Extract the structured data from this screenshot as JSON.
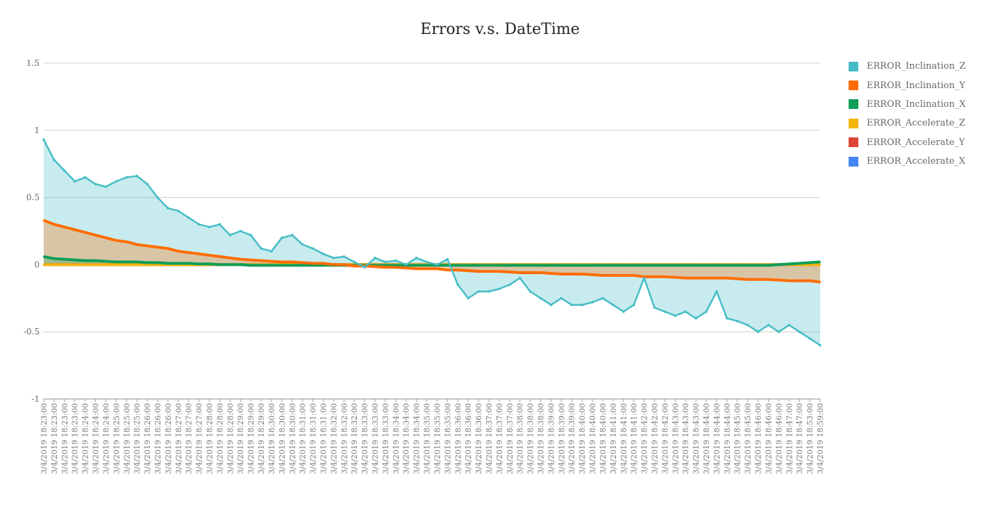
{
  "chart_data": {
    "type": "area",
    "title": "Errors v.s. DateTime",
    "xlabel": "",
    "ylabel": "",
    "ylim": [
      -1,
      1.5
    ],
    "yticks": [
      "1.5",
      "1",
      "0.5",
      "0",
      "-0.5",
      "-1"
    ],
    "grid": true,
    "legend_position": "right",
    "categories": [
      "3/4/2019 18:23:00",
      "3/4/2019 18:23:00",
      "3/4/2019 18:23:00",
      "3/4/2019 18:23:00",
      "3/4/2019 18:24:00",
      "3/4/2019 18:24:00",
      "3/4/2019 18:24:00",
      "3/4/2019 18:25:00",
      "3/4/2019 18:25:00",
      "3/4/2019 18:25:00",
      "3/4/2019 18:26:00",
      "3/4/2019 18:26:00",
      "3/4/2019 18:26:00",
      "3/4/2019 18:27:00",
      "3/4/2019 18:27:00",
      "3/4/2019 18:27:00",
      "3/4/2019 18:28:00",
      "3/4/2019 18:28:00",
      "3/4/2019 18:28:00",
      "3/4/2019 18:29:00",
      "3/4/2019 18:29:00",
      "3/4/2019 18:29:00",
      "3/4/2019 18:30:00",
      "3/4/2019 18:30:00",
      "3/4/2019 18:30:00",
      "3/4/2019 18:31:00",
      "3/4/2019 18:31:00",
      "3/4/2019 18:31:00",
      "3/4/2019 18:32:00",
      "3/4/2019 18:32:00",
      "3/4/2019 18:32:00",
      "3/4/2019 18:33:00",
      "3/4/2019 18:33:00",
      "3/4/2019 18:33:00",
      "3/4/2019 18:34:00",
      "3/4/2019 18:34:00",
      "3/4/2019 18:34:00",
      "3/4/2019 18:35:00",
      "3/4/2019 18:35:00",
      "3/4/2019 18:35:00",
      "3/4/2019 18:36:00",
      "3/4/2019 18:36:00",
      "3/4/2019 18:36:00",
      "3/4/2019 18:37:00",
      "3/4/2019 18:37:00",
      "3/4/2019 18:37:00",
      "3/4/2019 18:38:00",
      "3/4/2019 18:38:00",
      "3/4/2019 18:38:00",
      "3/4/2019 18:39:00",
      "3/4/2019 18:39:00",
      "3/4/2019 18:39:00",
      "3/4/2019 18:40:00",
      "3/4/2019 18:40:00",
      "3/4/2019 18:40:00",
      "3/4/2019 18:41:00",
      "3/4/2019 18:41:00",
      "3/4/2019 18:41:00",
      "3/4/2019 18:42:00",
      "3/4/2019 18:42:00",
      "3/4/2019 18:42:00",
      "3/4/2019 18:43:00",
      "3/4/2019 18:43:00",
      "3/4/2019 18:43:00",
      "3/4/2019 18:44:00",
      "3/4/2019 18:44:00",
      "3/4/2019 18:44:00",
      "3/4/2019 18:45:00",
      "3/4/2019 18:45:00",
      "3/4/2019 18:46:00",
      "3/4/2019 18:46:00",
      "3/4/2019 18:46:00",
      "3/4/2019 18:47:00",
      "3/4/2019 18:47:00",
      "3/4/2019 18:53:00",
      "3/4/2019 18:59:00"
    ],
    "series": [
      {
        "name": "ERROR_Inclination_Z",
        "color": "#46BDC6",
        "values": [
          0.93,
          0.78,
          0.7,
          0.62,
          0.65,
          0.6,
          0.58,
          0.62,
          0.65,
          0.66,
          0.6,
          0.5,
          0.42,
          0.4,
          0.35,
          0.3,
          0.28,
          0.3,
          0.22,
          0.25,
          0.22,
          0.12,
          0.1,
          0.2,
          0.22,
          0.15,
          0.12,
          0.08,
          0.05,
          0.06,
          0.02,
          -0.02,
          0.05,
          0.02,
          0.03,
          0.0,
          0.05,
          0.02,
          0.0,
          0.04,
          -0.15,
          -0.25,
          -0.2,
          -0.2,
          -0.18,
          -0.15,
          -0.1,
          -0.2,
          -0.25,
          -0.3,
          -0.25,
          -0.3,
          -0.3,
          -0.28,
          -0.25,
          -0.3,
          -0.35,
          -0.3,
          -0.1,
          -0.32,
          -0.35,
          -0.38,
          -0.35,
          -0.4,
          -0.35,
          -0.2,
          -0.4,
          -0.42,
          -0.45,
          -0.5,
          -0.45,
          -0.5,
          -0.45,
          -0.5,
          -0.55,
          -0.6
        ]
      },
      {
        "name": "ERROR_Inclination_Y",
        "color": "#FF6D01",
        "values": [
          0.33,
          0.3,
          0.28,
          0.26,
          0.24,
          0.22,
          0.2,
          0.18,
          0.17,
          0.15,
          0.14,
          0.13,
          0.12,
          0.1,
          0.09,
          0.08,
          0.07,
          0.06,
          0.05,
          0.04,
          0.035,
          0.03,
          0.025,
          0.02,
          0.02,
          0.015,
          0.01,
          0.01,
          0.0,
          0.0,
          -0.01,
          -0.01,
          -0.015,
          -0.02,
          -0.02,
          -0.025,
          -0.03,
          -0.03,
          -0.03,
          -0.04,
          -0.04,
          -0.045,
          -0.05,
          -0.05,
          -0.05,
          -0.055,
          -0.06,
          -0.06,
          -0.06,
          -0.065,
          -0.07,
          -0.07,
          -0.07,
          -0.075,
          -0.08,
          -0.08,
          -0.08,
          -0.08,
          -0.09,
          -0.09,
          -0.09,
          -0.095,
          -0.1,
          -0.1,
          -0.1,
          -0.1,
          -0.1,
          -0.105,
          -0.11,
          -0.11,
          -0.11,
          -0.115,
          -0.12,
          -0.12,
          -0.12,
          -0.13
        ]
      },
      {
        "name": "ERROR_Inclination_X",
        "color": "#0F9D58",
        "values": [
          0.06,
          0.045,
          0.04,
          0.035,
          0.03,
          0.03,
          0.025,
          0.02,
          0.02,
          0.02,
          0.015,
          0.015,
          0.01,
          0.01,
          0.01,
          0.005,
          0.005,
          0.0,
          0.0,
          0.0,
          -0.005,
          -0.005,
          -0.005,
          -0.005,
          -0.005,
          -0.005,
          -0.005,
          -0.005,
          -0.005,
          -0.005,
          -0.005,
          -0.005,
          -0.005,
          -0.005,
          -0.005,
          -0.005,
          -0.005,
          -0.005,
          -0.005,
          -0.005,
          -0.005,
          -0.005,
          -0.005,
          -0.005,
          -0.005,
          -0.005,
          -0.005,
          -0.005,
          -0.005,
          -0.005,
          -0.005,
          -0.005,
          -0.005,
          -0.005,
          -0.005,
          -0.005,
          -0.005,
          -0.005,
          -0.005,
          -0.005,
          -0.005,
          -0.005,
          -0.005,
          -0.005,
          -0.005,
          -0.005,
          -0.005,
          -0.005,
          -0.005,
          -0.005,
          -0.005,
          0.0,
          0.005,
          0.01,
          0.015,
          0.02
        ]
      },
      {
        "name": "ERROR_Accelerate_Z",
        "color": "#F4B400",
        "values": [
          0,
          0,
          0,
          0,
          0,
          0,
          0,
          0,
          0,
          0,
          0,
          0,
          0,
          0,
          0,
          0,
          0,
          0,
          0,
          0,
          0,
          0,
          0,
          0,
          0,
          0,
          0,
          0,
          0,
          0,
          0,
          0,
          0,
          0,
          0,
          0,
          0,
          0,
          0,
          0,
          0,
          0,
          0,
          0,
          0,
          0,
          0,
          0,
          0,
          0,
          0,
          0,
          0,
          0,
          0,
          0,
          0,
          0,
          0,
          0,
          0,
          0,
          0,
          0,
          0,
          0,
          0,
          0,
          0,
          0,
          0,
          0,
          0,
          0,
          0,
          0
        ]
      },
      {
        "name": "ERROR_Accelerate_Y",
        "color": "#DB4437",
        "values": [
          0,
          0,
          0,
          0,
          0,
          0,
          0,
          0,
          0,
          0,
          0,
          0,
          0,
          0,
          0,
          0,
          0,
          0,
          0,
          0,
          0,
          0,
          0,
          0,
          0,
          0,
          0,
          0,
          0,
          0,
          0,
          0,
          0,
          0,
          0,
          0,
          0,
          0,
          0,
          0,
          0,
          0,
          0,
          0,
          0,
          0,
          0,
          0,
          0,
          0,
          0,
          0,
          0,
          0,
          0,
          0,
          0,
          0,
          0,
          0,
          0,
          0,
          0,
          0,
          0,
          0,
          0,
          0,
          0,
          0,
          0,
          0,
          0,
          0,
          0,
          0
        ]
      },
      {
        "name": "ERROR_Accelerate_X",
        "color": "#4285F4",
        "values": [
          0,
          0,
          0,
          0,
          0,
          0,
          0,
          0,
          0,
          0,
          0,
          0,
          0,
          0,
          0,
          0,
          0,
          0,
          0,
          0,
          0,
          0,
          0,
          0,
          0,
          0,
          0,
          0,
          0,
          0,
          0,
          0,
          0,
          0,
          0,
          0,
          0,
          0,
          0,
          0,
          0,
          0,
          0,
          0,
          0,
          0,
          0,
          0,
          0,
          0,
          0,
          0,
          0,
          0,
          0,
          0,
          0,
          0,
          0,
          0,
          0,
          0,
          0,
          0,
          0,
          0,
          0,
          0,
          0,
          0,
          0,
          0,
          0,
          0,
          0,
          0
        ]
      }
    ]
  }
}
